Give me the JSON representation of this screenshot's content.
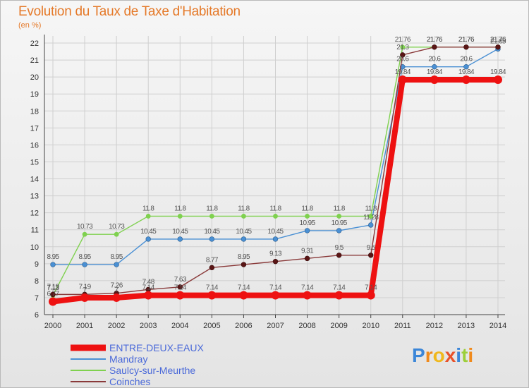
{
  "title": "Evolution du Taux de Taxe d'Habitation",
  "unit": "(en %)",
  "logo": "Proxiti",
  "chart_data": {
    "type": "line",
    "title": "Evolution du Taux de Taxe d'Habitation",
    "ylabel": "(en %)",
    "xlabel": "",
    "x": [
      "2000",
      "2001",
      "2002",
      "2003",
      "2004",
      "2005",
      "2006",
      "2007",
      "2008",
      "2009",
      "2010",
      "2011",
      "2012",
      "2013",
      "2014"
    ],
    "yticks": [
      "6",
      "7",
      "8",
      "9",
      "10",
      "11",
      "12",
      "13",
      "14",
      "15",
      "16",
      "17",
      "18",
      "19",
      "20",
      "21",
      "22"
    ],
    "ylim": [
      6,
      22
    ],
    "grid": true,
    "legend_position": "bottom-left",
    "series": [
      {
        "name": "ENTRE-DEUX-EAUX",
        "color": "#ee1111",
        "values": [
          6.77,
          7.0,
          7.0,
          7.14,
          7.14,
          7.14,
          7.14,
          7.14,
          7.14,
          7.14,
          7.14,
          19.84,
          19.84,
          19.84,
          19.84
        ],
        "labels": [
          "6.77",
          "7",
          "7",
          "7.14",
          "7.14",
          "7.14",
          "7.14",
          "7.14",
          "7.14",
          "7.14",
          "7.14",
          "19.84",
          "19.84",
          "19.84",
          "19.84"
        ]
      },
      {
        "name": "Mandray",
        "color": "#4a90d4",
        "values": [
          8.95,
          8.95,
          8.95,
          10.45,
          10.45,
          10.45,
          10.45,
          10.45,
          10.95,
          10.95,
          11.28,
          20.6,
          20.6,
          20.6,
          21.65
        ],
        "labels": [
          "8.95",
          "8.95",
          "8.95",
          "10.45",
          "10.45",
          "10.45",
          "10.45",
          "10.45",
          "10.95",
          "10.95",
          "11.28",
          "20.6",
          "20.6",
          "20.6",
          "21.65"
        ]
      },
      {
        "name": "Saulcy-sur-Meurthe",
        "color": "#7fd14f",
        "values": [
          7.13,
          10.73,
          10.73,
          11.8,
          11.8,
          11.8,
          11.8,
          11.8,
          11.8,
          11.8,
          11.8,
          21.76,
          21.76,
          21.76,
          21.76
        ],
        "labels": [
          "7.13",
          "10.73",
          "10.73",
          "11.8",
          "11.8",
          "11.8",
          "11.8",
          "11.8",
          "11.8",
          "11.8",
          "11.8",
          "21.76",
          "21.76",
          "21.76",
          "21.76"
        ]
      },
      {
        "name": "Coinches",
        "color": "#8a3a3a",
        "values": [
          7.19,
          7.19,
          7.26,
          7.48,
          7.63,
          8.77,
          8.95,
          9.13,
          9.31,
          9.5,
          9.5,
          21.3,
          21.76,
          21.76,
          21.76
        ],
        "labels": [
          "7.19",
          "7.19",
          "7.26",
          "7.48",
          "7.63",
          "8.77",
          "8.95",
          "9.13",
          "9.31",
          "9.5",
          "9.5",
          "21.3",
          "21.76",
          "21.76",
          "21.76"
        ]
      }
    ]
  },
  "colors": {
    "title": "#e57a2a",
    "legend_text": "#4a69d9",
    "gridline": "#cfcfcf",
    "axis": "#444444",
    "marker_dark": "#5a1515"
  }
}
